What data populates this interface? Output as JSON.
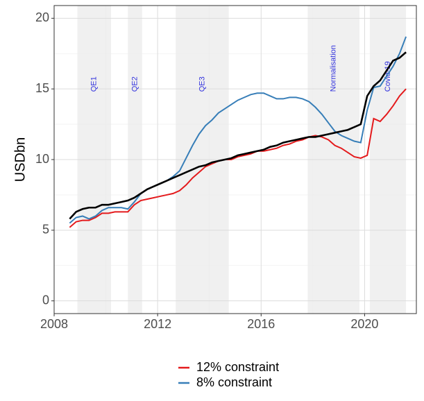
{
  "chart_data": {
    "type": "line",
    "y_label": "USDbn",
    "x": [
      2008.6,
      2008.85,
      2009.1,
      2009.35,
      2009.6,
      2009.85,
      2010.1,
      2010.35,
      2010.6,
      2010.85,
      2011.1,
      2011.35,
      2011.6,
      2011.85,
      2012.1,
      2012.35,
      2012.6,
      2012.85,
      2013.1,
      2013.35,
      2013.6,
      2013.85,
      2014.1,
      2014.35,
      2014.6,
      2014.85,
      2015.1,
      2015.35,
      2015.6,
      2015.85,
      2016.1,
      2016.35,
      2016.6,
      2016.85,
      2017.1,
      2017.35,
      2017.6,
      2017.85,
      2018.1,
      2018.35,
      2018.6,
      2018.85,
      2019.1,
      2019.35,
      2019.6,
      2019.85,
      2020.1,
      2020.35,
      2020.6,
      2020.85,
      2021.1,
      2021.35,
      2021.6
    ],
    "series": [
      {
        "name": "12% constraint",
        "color": "#e41a1c",
        "values": [
          5.2,
          5.6,
          5.7,
          5.7,
          5.9,
          6.2,
          6.2,
          6.3,
          6.3,
          6.3,
          6.8,
          7.1,
          7.2,
          7.3,
          7.4,
          7.5,
          7.6,
          7.8,
          8.2,
          8.7,
          9.1,
          9.5,
          9.7,
          9.9,
          10.0,
          10.0,
          10.2,
          10.3,
          10.4,
          10.6,
          10.6,
          10.7,
          10.8,
          11.0,
          11.1,
          11.3,
          11.4,
          11.6,
          11.7,
          11.6,
          11.4,
          11.0,
          10.8,
          10.5,
          10.2,
          10.1,
          10.3,
          12.9,
          12.7,
          13.2,
          13.8,
          14.5,
          15.0
        ]
      },
      {
        "name": "8% constraint",
        "color": "#377eb8",
        "values": [
          5.5,
          5.9,
          6.0,
          5.8,
          6.0,
          6.4,
          6.6,
          6.6,
          6.6,
          6.5,
          7.0,
          7.6,
          7.9,
          8.1,
          8.3,
          8.5,
          8.8,
          9.2,
          10.1,
          11.0,
          11.8,
          12.4,
          12.8,
          13.3,
          13.6,
          13.9,
          14.2,
          14.4,
          14.6,
          14.7,
          14.7,
          14.5,
          14.3,
          14.3,
          14.4,
          14.4,
          14.3,
          14.1,
          13.7,
          13.2,
          12.6,
          12.0,
          11.7,
          11.5,
          11.3,
          11.2,
          13.5,
          15.1,
          15.2,
          15.9,
          16.6,
          17.5,
          18.7
        ]
      },
      {
        "color": "#000000",
        "values": [
          5.8,
          6.3,
          6.5,
          6.6,
          6.6,
          6.8,
          6.8,
          6.9,
          7.0,
          7.1,
          7.3,
          7.6,
          7.9,
          8.1,
          8.3,
          8.5,
          8.7,
          8.9,
          9.1,
          9.3,
          9.5,
          9.6,
          9.8,
          9.9,
          10.0,
          10.1,
          10.3,
          10.4,
          10.5,
          10.6,
          10.7,
          10.9,
          11.0,
          11.2,
          11.3,
          11.4,
          11.5,
          11.6,
          11.6,
          11.7,
          11.8,
          11.9,
          12.0,
          12.1,
          12.3,
          12.5,
          14.5,
          15.2,
          15.6,
          16.3,
          17.0,
          17.2,
          17.6
        ]
      }
    ],
    "annotations": [
      {
        "label": "QE1",
        "start": 2008.9,
        "end": 2010.2
      },
      {
        "label": "QE2",
        "start": 2010.85,
        "end": 2011.4
      },
      {
        "label": "QE3",
        "start": 2012.7,
        "end": 2014.75
      },
      {
        "label": "Normalisation",
        "start": 2017.8,
        "end": 2019.8
      },
      {
        "label": "Covid-19",
        "start": 2020.2,
        "end": 2021.6
      }
    ],
    "shade_color": "#f0f0f0",
    "annotation_color": "#3333dd",
    "xlim": [
      2008,
      2022
    ],
    "xticks": [
      2008,
      2012,
      2016,
      2020
    ],
    "ylim": [
      -0.9,
      20.9
    ],
    "yticks": [
      0,
      5,
      10,
      15,
      20
    ],
    "grid": true,
    "legend": "bottom"
  }
}
